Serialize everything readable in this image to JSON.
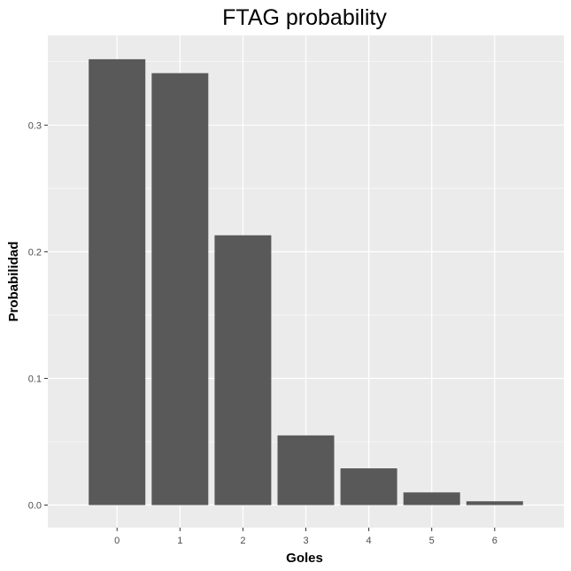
{
  "chart_data": {
    "type": "bar",
    "title": "FTAG probability",
    "xlabel": "Goles",
    "ylabel": "Probabilidad",
    "categories": [
      "0",
      "1",
      "2",
      "3",
      "4",
      "5",
      "6"
    ],
    "values": [
      0.352,
      0.341,
      0.213,
      0.055,
      0.029,
      0.01,
      0.003
    ],
    "ylim": [
      -0.0178,
      0.3708
    ],
    "yticks": [
      0.0,
      0.1,
      0.2,
      0.3
    ],
    "ytick_labels": [
      "0.0",
      "0.1",
      "0.2",
      "0.3"
    ],
    "grid": true,
    "colors": {
      "bar": "#595959",
      "panel": "#ebebeb",
      "grid_major": "#ffffff",
      "tick": "#333333"
    }
  }
}
